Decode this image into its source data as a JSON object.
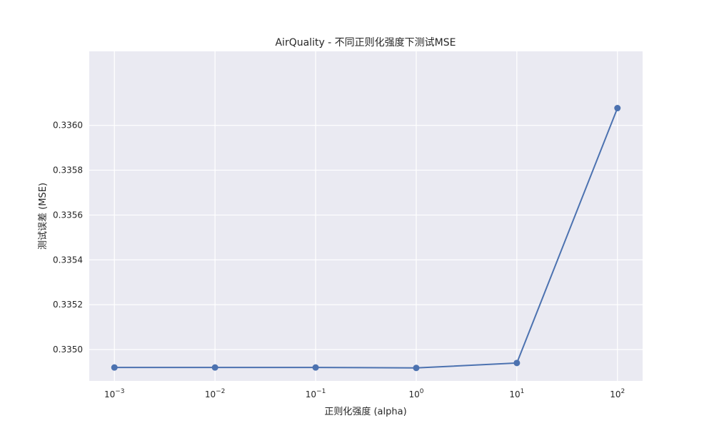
{
  "chart_data": {
    "type": "line",
    "title": "AirQuality - 不同正则化强度下测试MSE",
    "xlabel": "正则化强度 (alpha)",
    "ylabel": "测试误差 (MSE)",
    "x_scale": "log",
    "x": [
      0.001,
      0.01,
      0.1,
      1,
      10,
      100
    ],
    "x_tick_base": "10",
    "x_tick_exponents": [
      "−3",
      "−2",
      "−1",
      "0",
      "1",
      "2"
    ],
    "y_ticks": [
      "0.3350",
      "0.3352",
      "0.3354",
      "0.3356",
      "0.3358",
      "0.3360"
    ],
    "ylim": [
      0.33486,
      0.33633
    ],
    "grid": true,
    "series": [
      {
        "values": [
          0.33492,
          0.33492,
          0.33492,
          0.334918,
          0.33494,
          0.336077
        ],
        "color": "#4c72b0",
        "marker": "circle"
      }
    ],
    "background_color": "#eaeaf2",
    "grid_color": "#ffffff"
  }
}
